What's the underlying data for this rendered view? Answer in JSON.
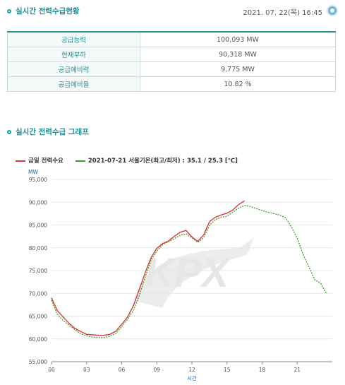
{
  "header": {
    "title": "실시간 전력수급현황",
    "datetime": "2021. 07. 22(목) 16:45"
  },
  "supply_table": [
    {
      "label": "공급능력",
      "value": "100,093 MW"
    },
    {
      "label": "현재부하",
      "value": "90,318 MW"
    },
    {
      "label": "공급예비력",
      "value": "9,775 MW"
    },
    {
      "label": "공급예비율",
      "value": "10.82 %"
    }
  ],
  "graph_section": {
    "title": "실시간 전력수급 그래프"
  },
  "chart_data": {
    "type": "line",
    "legend": [
      {
        "name": "금일 전력수요",
        "color": "#d63a3a"
      },
      {
        "name": "2021-07-21 서울기온(최고/최저) : 35.1 / 25.3 [℃]",
        "color": "#3a9c2a"
      }
    ],
    "ylabel": "MW",
    "xlabel": "시간",
    "ylim": [
      55000,
      95000
    ],
    "y_ticks": [
      "95,000",
      "90,000",
      "85,000",
      "80,000",
      "75,000",
      "70,000",
      "65,000",
      "60,000",
      "55,000"
    ],
    "x_ticks": [
      "00",
      "03",
      "06",
      "09",
      "12",
      "15",
      "18",
      "21"
    ],
    "xlim": [
      0,
      24
    ],
    "watermark": "KPX",
    "series": [
      {
        "name": "금일 전력수요",
        "color": "#d63a3a",
        "x": [
          0,
          0.5,
          1,
          1.5,
          2,
          2.5,
          3,
          3.5,
          4,
          4.5,
          5,
          5.5,
          6,
          6.5,
          7,
          7.5,
          8,
          8.5,
          9,
          9.5,
          10,
          10.5,
          11,
          11.5,
          12,
          12.5,
          13,
          13.5,
          14,
          14.5,
          15,
          15.5,
          16,
          16.5
        ],
        "y": [
          69000,
          66200,
          64800,
          63400,
          62300,
          61600,
          61000,
          60900,
          60800,
          60800,
          61000,
          61700,
          63200,
          64800,
          67300,
          70800,
          74500,
          77800,
          79900,
          80900,
          81500,
          82500,
          83400,
          83800,
          82400,
          81400,
          82800,
          85700,
          86700,
          87200,
          87600,
          88300,
          89500,
          90300
        ]
      },
      {
        "name": "2021-07-21",
        "color": "#3a9c2a",
        "x": [
          0,
          0.5,
          1,
          1.5,
          2,
          2.5,
          3,
          3.5,
          4,
          4.5,
          5,
          5.5,
          6,
          6.5,
          7,
          7.5,
          8,
          8.5,
          9,
          9.5,
          10,
          10.5,
          11,
          11.5,
          12,
          12.5,
          13,
          13.5,
          14,
          14.5,
          15,
          15.5,
          16,
          16.5,
          17,
          17.5,
          18,
          18.5,
          19,
          19.5,
          20,
          20.5,
          21,
          21.5,
          22,
          22.5,
          23,
          23.5
        ],
        "y": [
          68500,
          65400,
          64000,
          63000,
          62000,
          61100,
          60700,
          60400,
          60300,
          60300,
          60600,
          61200,
          62700,
          64300,
          66300,
          69500,
          73500,
          77300,
          79300,
          80700,
          81300,
          82000,
          82700,
          83100,
          82200,
          81200,
          82200,
          84900,
          86200,
          86700,
          86900,
          87800,
          88700,
          89300,
          89100,
          88600,
          88200,
          87800,
          87500,
          87200,
          86600,
          84600,
          82100,
          78600,
          75800,
          73000,
          72200,
          70000
        ]
      }
    ]
  }
}
